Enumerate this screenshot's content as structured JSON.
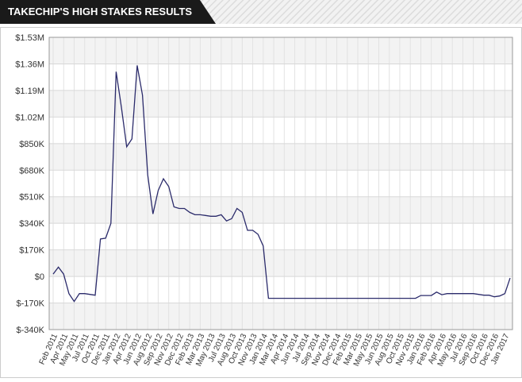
{
  "chart_data": {
    "type": "line",
    "title": "TAKECHIP'S HIGH STAKES RESULTS",
    "categories": [
      "Feb 2011",
      null,
      "Apr 2011",
      null,
      "May 2011",
      null,
      "Jul 2011",
      null,
      "Oct 2011",
      null,
      "Dec 2011",
      null,
      "Jan 2012",
      null,
      "Apr 2012",
      null,
      "Jun 2012",
      null,
      "Aug 2012",
      null,
      "Sep 2012",
      null,
      "Nov 2012",
      null,
      "Dec 2012",
      null,
      "Feb 2013",
      null,
      "Mar 2013",
      null,
      "May 2013",
      null,
      "Jul 2013",
      null,
      "Aug 2013",
      null,
      "Oct 2013",
      null,
      "Nov 2013",
      null,
      "Jan 2014",
      null,
      "Mar 2014",
      null,
      "Apr 2014",
      null,
      "Jun 2014",
      null,
      "Jul 2014",
      null,
      "Sep 2014",
      null,
      "Nov 2014",
      null,
      "Dec 2014",
      null,
      "Feb 2015",
      null,
      "Mar 2015",
      null,
      "May 2015",
      null,
      "Jun 2015",
      null,
      "Aug 2015",
      null,
      "Oct 2015",
      null,
      "Nov 2015",
      null,
      "Jan 2016",
      null,
      "Feb 2016",
      null,
      "Apr 2016",
      null,
      "May 2016",
      null,
      "Jul 2016",
      null,
      "Sep 2016",
      null,
      "Oct 2016",
      null,
      "Dec 2016",
      null,
      "Jan 2017",
      null
    ],
    "values": [
      15000,
      60000,
      15000,
      -110000,
      -160000,
      -110000,
      -110000,
      -115000,
      -120000,
      240000,
      245000,
      340000,
      1310000,
      1080000,
      830000,
      880000,
      1350000,
      1160000,
      650000,
      400000,
      550000,
      625000,
      575000,
      445000,
      435000,
      435000,
      410000,
      395000,
      395000,
      390000,
      385000,
      385000,
      395000,
      355000,
      370000,
      435000,
      410000,
      295000,
      295000,
      270000,
      195000,
      -140000,
      -140000,
      -140000,
      -140000,
      -140000,
      -140000,
      -140000,
      -140000,
      -140000,
      -140000,
      -140000,
      -140000,
      -140000,
      -140000,
      -140000,
      -140000,
      -140000,
      -140000,
      -140000,
      -140000,
      -140000,
      -140000,
      -140000,
      -140000,
      -140000,
      -140000,
      -140000,
      -140000,
      -140000,
      -122000,
      -122000,
      -122000,
      -100000,
      -117000,
      -110000,
      -110000,
      -110000,
      -110000,
      -110000,
      -110000,
      -115000,
      -120000,
      -120000,
      -130000,
      -125000,
      -110000,
      -10000
    ],
    "color": "#2b2b6b",
    "ylim": [
      -340000,
      1530000
    ],
    "yticks": [
      {
        "value": -340000,
        "label": "$-340K"
      },
      {
        "value": -170000,
        "label": "$-170K"
      },
      {
        "value": 0,
        "label": "$0"
      },
      {
        "value": 170000,
        "label": "$170K"
      },
      {
        "value": 340000,
        "label": "$340K"
      },
      {
        "value": 510000,
        "label": "$510K"
      },
      {
        "value": 680000,
        "label": "$680K"
      },
      {
        "value": 850000,
        "label": "$850K"
      },
      {
        "value": 1020000,
        "label": "$1.02M"
      },
      {
        "value": 1190000,
        "label": "$1.19M"
      },
      {
        "value": 1360000,
        "label": "$1.36M"
      },
      {
        "value": 1530000,
        "label": "$1.53M"
      }
    ],
    "grid": true
  }
}
